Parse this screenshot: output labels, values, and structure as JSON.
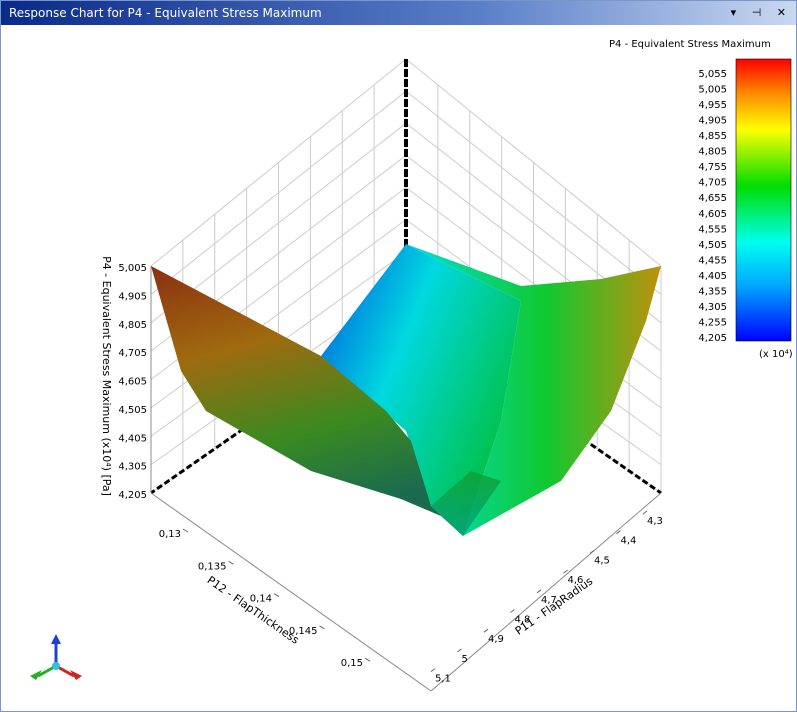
{
  "window": {
    "title": "Response Chart for P4 - Equivalent Stress Maximum"
  },
  "legend": {
    "title": "P4 - Equivalent Stress Maximum",
    "labels": [
      "5,055",
      "5,005",
      "4,955",
      "4,905",
      "4,855",
      "4,805",
      "4,755",
      "4,705",
      "4,655",
      "4,605",
      "4,555",
      "4,505",
      "4,455",
      "4,405",
      "4,355",
      "4,305",
      "4,255",
      "4,205"
    ],
    "multiplier": "(x 10⁴)"
  },
  "z_axis": {
    "title": "P4 - Equivalent Stress Maximum  (x10⁴)  [Pa]",
    "ticks": [
      "5,005",
      "4,905",
      "4,805",
      "4,705",
      "4,605",
      "4,505",
      "4,405",
      "4,305",
      "4,205"
    ]
  },
  "x_axis": {
    "title": "P12 - FlapThickness",
    "ticks": [
      "0,13",
      "0,135",
      "0,14",
      "0,145",
      "0,15"
    ]
  },
  "y_axis": {
    "title": "P11 - FlapRadius",
    "ticks": [
      "4,3",
      "4,4",
      "4,5",
      "4,6",
      "4,7",
      "4,8",
      "4,9",
      "5",
      "5,1"
    ]
  }
}
